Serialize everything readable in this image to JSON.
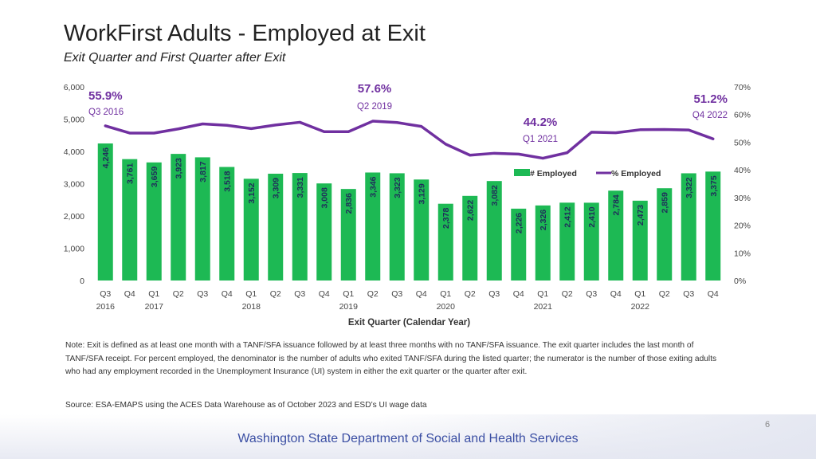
{
  "slide": {
    "title": "WorkFirst Adults - Employed at Exit",
    "subtitle": "Exit Quarter and First Quarter after Exit",
    "note": "Note: Exit is defined as at least one month with a TANF/SFA issuance followed by at least three months with no TANF/SFA issuance. The exit quarter includes the last month of TANF/SFA receipt. For percent employed, the denominator is the number of adults who exited TANF/SFA during the listed quarter; the numerator is the number of those exiting adults who had any employment recorded in the Unemployment Insurance (UI) system in either the exit quarter or the quarter after exit.",
    "source": "Source: ESA-EMAPS using the ACES Data Warehouse as of October 2023 and ESD’s UI wage data",
    "page_number": "6",
    "footer": "Washington State Department of Social and Health Services"
  },
  "colors": {
    "bar": "#1db954",
    "line": "#7030a0",
    "callout": "#7030a0",
    "axis_text": "#444444"
  },
  "chart_data": {
    "type": "bar",
    "xlabel": "Exit Quarter (Calendar Year)",
    "categories": [
      "Q3",
      "Q4",
      "Q1",
      "Q2",
      "Q3",
      "Q4",
      "Q1",
      "Q2",
      "Q3",
      "Q4",
      "Q1",
      "Q2",
      "Q3",
      "Q4",
      "Q1",
      "Q2",
      "Q3",
      "Q4",
      "Q1",
      "Q2",
      "Q3",
      "Q4",
      "Q1",
      "Q2",
      "Q3",
      "Q4"
    ],
    "years": [
      {
        "label": "2016",
        "index": 0
      },
      {
        "label": "2017",
        "index": 2
      },
      {
        "label": "2018",
        "index": 6
      },
      {
        "label": "2019",
        "index": 10
      },
      {
        "label": "2020",
        "index": 14
      },
      {
        "label": "2021",
        "index": 18
      },
      {
        "label": "2022",
        "index": 22
      }
    ],
    "series": [
      {
        "name": "# Employed",
        "type": "bar",
        "axis": "left",
        "values": [
          4246,
          3761,
          3659,
          3923,
          3817,
          3518,
          3152,
          3309,
          3331,
          3008,
          2836,
          3346,
          3323,
          3129,
          2378,
          2622,
          3082,
          2226,
          2326,
          2412,
          2410,
          2784,
          2473,
          2859,
          3322,
          3375
        ],
        "labels": [
          "4,246",
          "3,761",
          "3,659",
          "3,923",
          "3,817",
          "3,518",
          "3,152",
          "3,309",
          "3,331",
          "3,008",
          "2,836",
          "3,346",
          "3,323",
          "3,129",
          "2,378",
          "2,622",
          "3,082",
          "2,226",
          "2,326",
          "2,412",
          "2,410",
          "2,784",
          "2,473",
          "2,859",
          "3,322",
          "3,375"
        ]
      },
      {
        "name": "% Employed",
        "type": "line",
        "axis": "right",
        "values": [
          55.9,
          53.3,
          53.3,
          54.8,
          56.6,
          56.1,
          54.9,
          56.2,
          57.2,
          53.8,
          53.8,
          57.6,
          57.1,
          55.7,
          49.3,
          45.3,
          46.0,
          45.7,
          44.2,
          46.2,
          53.6,
          53.4,
          54.5,
          54.6,
          54.4,
          51.2
        ]
      }
    ],
    "y_left": {
      "min": 0,
      "max": 6000,
      "ticks": [
        "0",
        "1,000",
        "2,000",
        "3,000",
        "4,000",
        "5,000",
        "6,000"
      ]
    },
    "y_right": {
      "min": 0,
      "max": 70,
      "ticks": [
        "0%",
        "10%",
        "20%",
        "30%",
        "40%",
        "50%",
        "60%",
        "70%"
      ]
    },
    "legend": {
      "position": "top-right",
      "items": [
        "# Employed",
        "% Employed"
      ]
    },
    "callouts": [
      {
        "index": 0,
        "value": "55.9%",
        "label": "Q3 2016",
        "align": "left"
      },
      {
        "index": 11,
        "value": "57.6%",
        "label": "Q2 2019",
        "align": "center"
      },
      {
        "index": 18,
        "value": "44.2%",
        "label": "Q1 2021",
        "align": "center"
      },
      {
        "index": 25,
        "value": "51.2%",
        "label": "Q4 2022",
        "align": "right"
      }
    ]
  }
}
